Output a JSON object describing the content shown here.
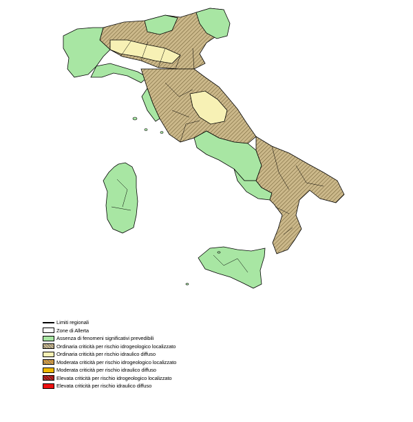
{
  "map": {
    "colors": {
      "absence": "#a8e6a3",
      "ordinaria_idro": "#cbb88a",
      "ordinaria_idraulico": "#f7f1b5",
      "moderata_idro": "#e0a03a",
      "moderata_idraulico": "#f0b800",
      "elevata_idro": "#b30000",
      "elevata_idraulico": "#ee1111",
      "border": "#000000"
    }
  },
  "legend": {
    "items": [
      {
        "kind": "line",
        "label": "Limiti regionali"
      },
      {
        "kind": "box",
        "fill": "#ffffff",
        "hatch": false,
        "label": "Zone di Allerta"
      },
      {
        "kind": "box",
        "fill": "#a8e6a3",
        "hatch": false,
        "label": "Assenza di fenomeni significativi prevedibili"
      },
      {
        "kind": "box",
        "fill": "#cbb88a",
        "hatch": true,
        "label": "Ordinaria criticità per rischio idrogeologico localizzato"
      },
      {
        "kind": "box",
        "fill": "#f7f1b5",
        "hatch": false,
        "label": "Ordinaria criticità per rischio idraulico diffuso"
      },
      {
        "kind": "box",
        "fill": "#e0a03a",
        "hatch": true,
        "label": "Moderata criticità per rischio idrogeologico localizzato"
      },
      {
        "kind": "box",
        "fill": "#f0b800",
        "hatch": false,
        "label": "Moderata criticità per rischio idraulico diffuso"
      },
      {
        "kind": "box",
        "fill": "#b30000",
        "hatch": true,
        "label": "Elevata criticità per rischio idrogeologico localizzato"
      },
      {
        "kind": "box",
        "fill": "#ee1111",
        "hatch": false,
        "label": "Elevata criticità per rischio idraulico diffuso"
      }
    ]
  }
}
